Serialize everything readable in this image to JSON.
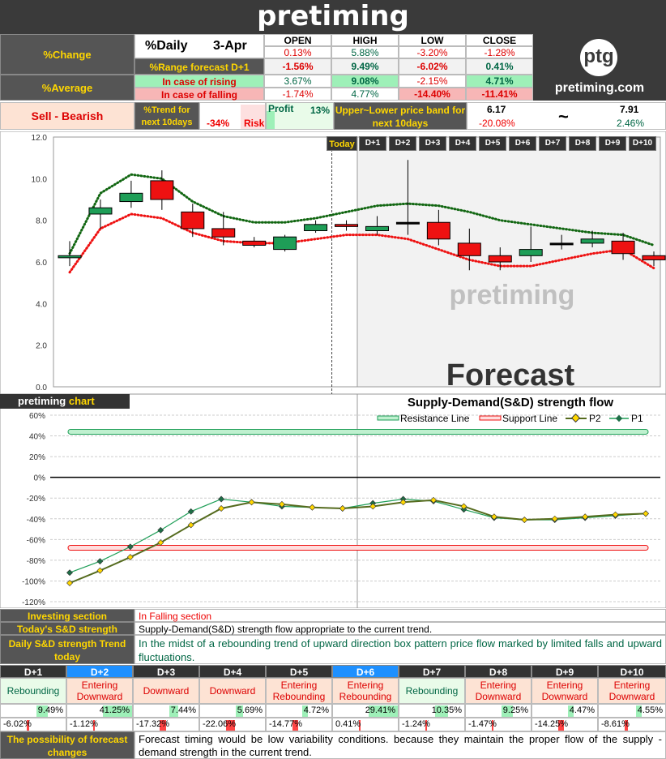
{
  "header": {
    "brand": "pretiming",
    "logo_text": "ptg",
    "site": "pretiming.com"
  },
  "summary": {
    "change_label": "%Change",
    "daily_label": "%Daily",
    "date": "3-Apr",
    "cols": [
      "OPEN",
      "HIGH",
      "LOW",
      "CLOSE"
    ],
    "daily_change": [
      "0.13%",
      "5.88%",
      "-3.20%",
      "-1.28%"
    ],
    "range_label": "%Range forecast D+1",
    "range_forecast": [
      "-1.56%",
      "9.49%",
      "-6.02%",
      "0.41%"
    ],
    "average_label": "%Average",
    "rising_label": "In case of rising",
    "rising": [
      "3.67%",
      "9.08%",
      "-2.15%",
      "4.71%"
    ],
    "falling_label": "In case of falling",
    "falling": [
      "-1.74%",
      "4.77%",
      "-14.40%",
      "-11.41%"
    ],
    "signal": "Sell - Bearish",
    "trend_label": "%Trend for next 10days",
    "trend_risk_value": "-34%",
    "risk_label": "Risk",
    "profit_label": "Profit",
    "profit_value": "13%",
    "band_label": "Upper~Lower price band for next 10days",
    "band_lower": "6.17",
    "band_lower_pct": "-20.08%",
    "band_tilde": "~",
    "band_upper": "7.91",
    "band_upper_pct": "2.46%"
  },
  "chart_data": [
    {
      "type": "candlestick",
      "title": "",
      "ylim": [
        0,
        12
      ],
      "yticks": [
        "0.0",
        "2.0",
        "4.0",
        "6.0",
        "8.0",
        "10.0",
        "12.0"
      ],
      "day_labels": [
        "Today",
        "D+1",
        "D+2",
        "D+3",
        "D+4",
        "D+5",
        "D+6",
        "D+7",
        "D+8",
        "D+9",
        "D+10"
      ],
      "candles": [
        {
          "o": 6.2,
          "c": 6.3,
          "h": 7.0,
          "l": 5.8
        },
        {
          "o": 8.3,
          "c": 8.6,
          "h": 9.0,
          "l": 7.6
        },
        {
          "o": 8.9,
          "c": 9.3,
          "h": 9.9,
          "l": 8.6
        },
        {
          "o": 9.9,
          "c": 9.0,
          "h": 10.4,
          "l": 8.5
        },
        {
          "o": 8.4,
          "c": 7.6,
          "h": 8.8,
          "l": 7.2
        },
        {
          "o": 7.6,
          "c": 7.2,
          "h": 8.4,
          "l": 6.8
        },
        {
          "o": 7.0,
          "c": 6.8,
          "h": 7.2,
          "l": 6.7
        },
        {
          "o": 6.6,
          "c": 7.2,
          "h": 7.3,
          "l": 6.5
        },
        {
          "o": 7.5,
          "c": 7.8,
          "h": 8.0,
          "l": 7.4
        },
        {
          "o": 7.8,
          "c": 7.7,
          "h": 8.0,
          "l": 7.5
        },
        {
          "o": 7.5,
          "c": 7.7,
          "h": 8.2,
          "l": 7.3
        },
        {
          "o": 7.9,
          "c": 7.9,
          "h": 10.9,
          "l": 7.3
        },
        {
          "o": 7.9,
          "c": 7.1,
          "h": 8.5,
          "l": 6.8
        },
        {
          "o": 6.9,
          "c": 6.3,
          "h": 7.6,
          "l": 5.6
        },
        {
          "o": 6.3,
          "c": 6.0,
          "h": 6.7,
          "l": 5.6
        },
        {
          "o": 6.3,
          "c": 6.6,
          "h": 7.7,
          "l": 6.0
        },
        {
          "o": 6.9,
          "c": 6.9,
          "h": 7.3,
          "l": 6.6
        },
        {
          "o": 6.9,
          "c": 7.1,
          "h": 7.5,
          "l": 6.7
        },
        {
          "o": 7.0,
          "c": 6.4,
          "h": 7.4,
          "l": 6.1
        },
        {
          "o": 6.3,
          "c": 6.1,
          "h": 6.5,
          "l": 5.8
        }
      ],
      "upper_band": [
        6.4,
        9.3,
        10.2,
        10.0,
        8.9,
        8.2,
        7.9,
        7.9,
        8.1,
        8.4,
        8.7,
        8.8,
        8.7,
        8.4,
        8.0,
        7.8,
        7.6,
        7.4,
        7.3,
        6.8
      ],
      "lower_band": [
        5.5,
        7.6,
        8.3,
        8.1,
        7.4,
        7.0,
        6.9,
        6.9,
        7.1,
        7.3,
        7.3,
        7.1,
        6.6,
        6.1,
        5.8,
        5.8,
        6.1,
        6.4,
        6.6,
        5.7
      ],
      "watermark": "pretiming",
      "forecast_label": "Forecast"
    },
    {
      "type": "line",
      "title": "Supply-Demand(S&D) strength flow",
      "ylim": [
        -120,
        60
      ],
      "yticks": [
        "-120%",
        "-100%",
        "-80%",
        "-60%",
        "-40%",
        "-20%",
        "0%",
        "20%",
        "40%",
        "60%"
      ],
      "resistance": 44,
      "support": -68,
      "legend": [
        "Resistance Line",
        "Support Line",
        "P2",
        "P1"
      ],
      "series": [
        {
          "name": "P2",
          "values": [
            -102,
            -90,
            -77,
            -63,
            -46,
            -30,
            -24,
            -26,
            -29,
            -30,
            -28,
            -24,
            -22,
            -28,
            -38,
            -41,
            -40,
            -38,
            -36,
            -35
          ]
        },
        {
          "name": "P1",
          "values": [
            -92,
            -81,
            -67,
            -51,
            -33,
            -21,
            -24,
            -28,
            -29,
            -30,
            -25,
            -21,
            -23,
            -31,
            -39,
            -41,
            -41,
            -39,
            -37,
            -35
          ]
        }
      ],
      "corner_label": "pretiming",
      "corner_label_hl": "chart"
    }
  ],
  "analysis": {
    "investing_label": "Investing section",
    "investing_value": "In Falling section",
    "sd_label": "Today's S&D strength",
    "sd_value": "Supply-Demand(S&D) strength flow appropriate to the current trend.",
    "daily_label": "Daily S&D strength Trend today",
    "daily_value": "In the midst of a rebounding trend of upward direction box pattern price flow marked by limited falls and upward fluctuations."
  },
  "days": [
    {
      "label": "D+1",
      "trend": "Rebounding",
      "up": "9.49%",
      "down": "-6.02%",
      "up_v": 9.49,
      "down_v": 6.02,
      "hl": false
    },
    {
      "label": "D+2",
      "trend": "Entering Downward",
      "up": "41.25%",
      "down": "-1.12%",
      "up_v": 41.25,
      "down_v": 1.12,
      "hl": true
    },
    {
      "label": "D+3",
      "trend": "Downward",
      "up": "7.44%",
      "down": "-17.32%",
      "up_v": 7.44,
      "down_v": 17.32,
      "hl": false
    },
    {
      "label": "D+4",
      "trend": "Downward",
      "up": "5.69%",
      "down": "-22.06%",
      "up_v": 5.69,
      "down_v": 22.06,
      "hl": false
    },
    {
      "label": "D+5",
      "trend": "Entering Rebounding",
      "up": "4.72%",
      "down": "-14.77%",
      "up_v": 4.72,
      "down_v": 14.77,
      "hl": false
    },
    {
      "label": "D+6",
      "trend": "Entering Rebounding",
      "up": "29.41%",
      "down": "0.41%",
      "up_v": 29.41,
      "down_v": 0.41,
      "hl": true
    },
    {
      "label": "D+7",
      "trend": "Rebounding",
      "up": "10.35%",
      "down": "-1.24%",
      "up_v": 10.35,
      "down_v": 1.24,
      "hl": false
    },
    {
      "label": "D+8",
      "trend": "Entering Downward",
      "up": "9.25%",
      "down": "-1.47%",
      "up_v": 9.25,
      "down_v": 1.47,
      "hl": false
    },
    {
      "label": "D+9",
      "trend": "Entering Downward",
      "up": "4.47%",
      "down": "-14.25%",
      "up_v": 4.47,
      "down_v": 14.25,
      "hl": false
    },
    {
      "label": "D+10",
      "trend": "Entering Downward",
      "up": "4.55%",
      "down": "-8.61%",
      "up_v": 4.55,
      "down_v": 8.61,
      "hl": false
    }
  ],
  "footer": {
    "label": "The possibility of forecast changes",
    "value": "Forecast timing would be low variability conditions. because they maintain the proper flow of the supply - demand strength in the current trend."
  },
  "colors": {
    "up": "#1e9e57",
    "down": "#ee1111",
    "accent": "#ffd700",
    "p1": "#1e9e57",
    "p2": "#556b1e"
  }
}
